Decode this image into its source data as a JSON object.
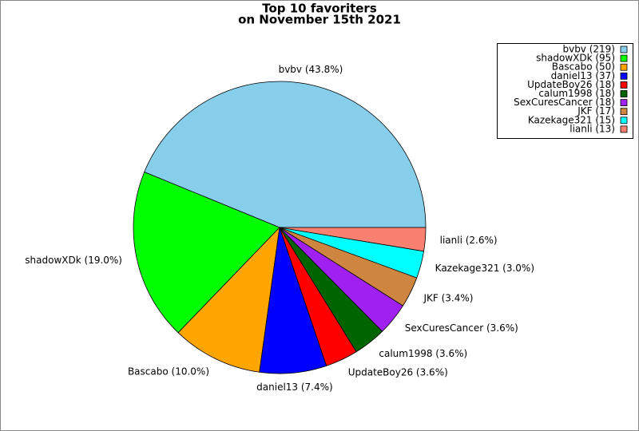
{
  "chart_data": {
    "type": "pie",
    "title_lines": [
      "Top 10 favoriters",
      "on November 15th 2021"
    ],
    "categories": [
      "bvbv (219)",
      "shadowXDk (95)",
      "Bascabo (50)",
      "daniel13 (37)",
      "UpdateBoy26 (18)",
      "calum1998 (18)",
      "SexCuresCancer (18)",
      "JKF (17)",
      "Kazekage321 (15)",
      "lianli (13)"
    ],
    "values": [
      43.8,
      19.0,
      10.0,
      7.4,
      3.6,
      3.6,
      3.6,
      3.4,
      3.0,
      2.6
    ],
    "value_labels": [
      "bvbv (43.8%)",
      "shadowXDk (19.0%)",
      "Bascabo (10.0%)",
      "daniel13 (7.4%)",
      "UpdateBoy26 (3.6%)",
      "calum1998 (3.6%)",
      "SexCuresCancer (3.6%)",
      "JKF (3.4%)",
      "Kazekage321 (3.0%)",
      "lianli (2.6%)"
    ],
    "colors": [
      "#87ceeb",
      "#00ff00",
      "#ffa500",
      "#0000ff",
      "#ff0000",
      "#006400",
      "#a020f0",
      "#cd853f",
      "#00ffff",
      "#fa8072"
    ],
    "legend": "upper right"
  }
}
